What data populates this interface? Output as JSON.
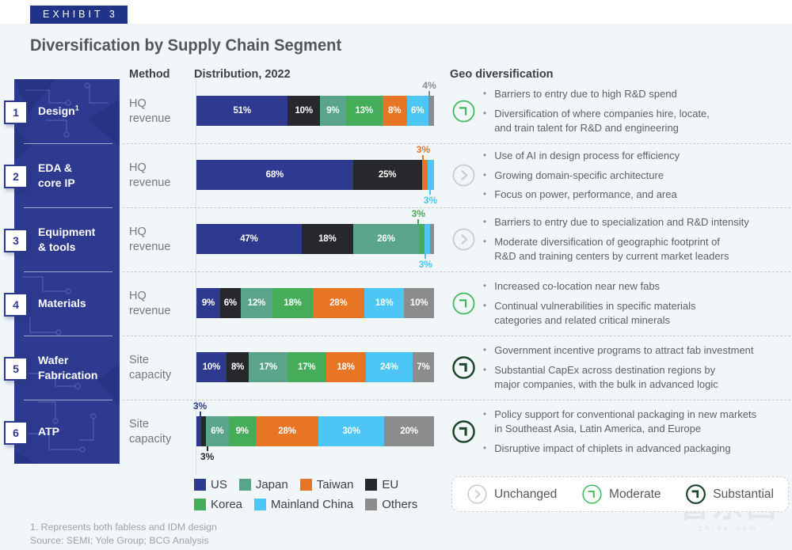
{
  "exhibit_label": "EXHIBIT 3",
  "title": "Diversification by Supply Chain Segment",
  "headers": {
    "method": "Method",
    "distribution": "Distribution, 2022",
    "geo": "Geo diversification"
  },
  "region_labels": {
    "us": "US",
    "japan": "Japan",
    "taiwan": "Taiwan",
    "eu": "EU",
    "korea": "Korea",
    "mainland_china": "Mainland China",
    "others": "Others"
  },
  "region_colors": {
    "us": "#2D3A8F",
    "eu": "#26282B",
    "japan": "#5AA58A",
    "korea": "#45AC5A",
    "taiwan": "#E87524",
    "mainland_china": "#4EC6F5",
    "others": "#8C8C8C"
  },
  "status_colors": {
    "unchanged": "#C8CCCE",
    "moderate": "#41B75F",
    "substantial": "#1C452A"
  },
  "rows": [
    {
      "number": "1",
      "segment": "Design",
      "segment_sup": "1",
      "method": "HQ\nrevenue",
      "geo_status": "moderate",
      "bar": [
        {
          "region": "us",
          "value": 51,
          "label": "51%",
          "label_pos": "inside"
        },
        {
          "region": "eu",
          "value": 10,
          "label": "10%",
          "label_pos": "inside"
        },
        {
          "region": "japan",
          "value": 9,
          "label": "9%",
          "label_pos": "inside"
        },
        {
          "region": "korea",
          "value": 13,
          "label": "13%",
          "label_pos": "inside"
        },
        {
          "region": "taiwan",
          "value": 8,
          "label": "8%",
          "label_pos": "inside"
        },
        {
          "region": "mainland_china",
          "value": 6,
          "label": "6%",
          "label_pos": "inside"
        },
        {
          "region": "others",
          "value": 4,
          "label": "4%",
          "label_pos": "above"
        }
      ],
      "bullets": [
        "Barriers to entry due to high R&D spend",
        "Diversification of where companies hire, locate,\nand train talent for R&D and engineering"
      ]
    },
    {
      "number": "2",
      "segment": "EDA &\ncore IP",
      "segment_sup": "",
      "method": "HQ\nrevenue",
      "geo_status": "unchanged",
      "bar": [
        {
          "region": "us",
          "value": 68,
          "label": "68%",
          "label_pos": "inside"
        },
        {
          "region": "eu",
          "value": 25,
          "label": "25%",
          "label_pos": "inside"
        },
        {
          "region": "taiwan",
          "value": 3,
          "label": "3%",
          "label_pos": "above"
        },
        {
          "region": "mainland_china",
          "value": 3,
          "label": "3%",
          "label_pos": "below"
        }
      ],
      "bullets": [
        "Use of AI in design process for efficiency",
        "Growing domain-specific architecture",
        "Focus on power, performance, and area"
      ]
    },
    {
      "number": "3",
      "segment": "Equipment\n& tools",
      "segment_sup": "",
      "method": "HQ\nrevenue",
      "geo_status": "unchanged",
      "bar": [
        {
          "region": "us",
          "value": 47,
          "label": "47%",
          "label_pos": "inside"
        },
        {
          "region": "eu",
          "value": 18,
          "label": "18%",
          "label_pos": "inside"
        },
        {
          "region": "japan",
          "value": 26,
          "label": "26%",
          "label_pos": "inside"
        },
        {
          "region": "korea",
          "value": 3,
          "label": "3%",
          "label_pos": "above"
        },
        {
          "region": "mainland_china",
          "value": 3,
          "label": "3%",
          "label_pos": "below"
        },
        {
          "region": "others",
          "value": 2,
          "label": "",
          "label_pos": "none"
        }
      ],
      "bullets": [
        "Barriers to entry due to specialization and R&D intensity",
        "Moderate diversification of geographic footprint of\nR&D and training centers by current market leaders"
      ]
    },
    {
      "number": "4",
      "segment": "Materials",
      "segment_sup": "",
      "method": "HQ\nrevenue",
      "geo_status": "moderate",
      "bar": [
        {
          "region": "us",
          "value": 9,
          "label": "9%",
          "label_pos": "inside"
        },
        {
          "region": "eu",
          "value": 6,
          "label": "6%",
          "label_pos": "inside"
        },
        {
          "region": "japan",
          "value": 12,
          "label": "12%",
          "label_pos": "inside"
        },
        {
          "region": "korea",
          "value": 18,
          "label": "18%",
          "label_pos": "inside"
        },
        {
          "region": "taiwan",
          "value": 28,
          "label": "28%",
          "label_pos": "inside"
        },
        {
          "region": "mainland_china",
          "value": 18,
          "label": "18%",
          "label_pos": "inside"
        },
        {
          "region": "others",
          "value": 10,
          "label": "10%",
          "label_pos": "inside"
        }
      ],
      "bullets": [
        "Increased co-location near new fabs",
        "Continual vulnerabilities in specific materials\ncategories and related critical minerals"
      ]
    },
    {
      "number": "5",
      "segment": "Wafer\nFabrication",
      "segment_sup": "",
      "method": "Site\ncapacity",
      "geo_status": "substantial",
      "bar": [
        {
          "region": "us",
          "value": 10,
          "label": "10%",
          "label_pos": "inside"
        },
        {
          "region": "eu",
          "value": 8,
          "label": "8%",
          "label_pos": "inside"
        },
        {
          "region": "japan",
          "value": 17,
          "label": "17%",
          "label_pos": "inside"
        },
        {
          "region": "korea",
          "value": 17,
          "label": "17%",
          "label_pos": "inside"
        },
        {
          "region": "taiwan",
          "value": 18,
          "label": "18%",
          "label_pos": "inside"
        },
        {
          "region": "mainland_china",
          "value": 24,
          "label": "24%",
          "label_pos": "inside"
        },
        {
          "region": "others",
          "value": 7,
          "label": "7%",
          "label_pos": "inside"
        }
      ],
      "bullets": [
        "Government incentive programs to attract fab investment",
        "Substantial CapEx across destination regions by\nmajor companies, with the bulk in advanced logic"
      ]
    },
    {
      "number": "6",
      "segment": "ATP",
      "segment_sup": "",
      "method": "Site\ncapacity",
      "geo_status": "substantial",
      "bar": [
        {
          "region": "us",
          "value": 3,
          "label": "3%",
          "label_pos": "above"
        },
        {
          "region": "eu",
          "value": 3,
          "label": "3%",
          "label_pos": "below"
        },
        {
          "region": "japan",
          "value": 6,
          "label": "6%",
          "label_pos": "inside"
        },
        {
          "region": "korea",
          "value": 9,
          "label": "9%",
          "label_pos": "inside"
        },
        {
          "region": "taiwan",
          "value": 28,
          "label": "28%",
          "label_pos": "inside"
        },
        {
          "region": "mainland_china",
          "value": 30,
          "label": "30%",
          "label_pos": "inside"
        },
        {
          "region": "others",
          "value": 20,
          "label": "20%",
          "label_pos": "inside"
        }
      ],
      "bullets": [
        "Policy support for conventional packaging in new markets\nin Southeast Asia, Latin America, and Europe",
        "Disruptive impact of chiplets in advanced packaging"
      ]
    }
  ],
  "region_legend_rows": [
    [
      "us",
      "japan",
      "taiwan",
      "eu"
    ],
    [
      "korea",
      "mainland_china",
      "others"
    ]
  ],
  "geo_legend": [
    {
      "status": "unchanged",
      "label": "Unchanged"
    },
    {
      "status": "moderate",
      "label": "Moderate"
    },
    {
      "status": "substantial",
      "label": "Substantial"
    }
  ],
  "footnotes": {
    "note": "1. Represents both fabless and IDM design",
    "source": "Source: SEMI; Yole Group; BCG Analysis"
  },
  "watermark": {
    "text": "智东西",
    "sub": "zhidx.com"
  },
  "chart_data": {
    "type": "bar",
    "stacked": true,
    "orientation": "horizontal",
    "unit": "%",
    "title": "Distribution, 2022",
    "categories": [
      "Design",
      "EDA & core IP",
      "Equipment & tools",
      "Materials",
      "Wafer Fabrication",
      "ATP"
    ],
    "category_methods": [
      "HQ revenue",
      "HQ revenue",
      "HQ revenue",
      "HQ revenue",
      "Site capacity",
      "Site capacity"
    ],
    "series": [
      {
        "name": "US",
        "values": [
          51,
          68,
          47,
          9,
          10,
          3
        ]
      },
      {
        "name": "EU",
        "values": [
          10,
          25,
          18,
          6,
          8,
          3
        ]
      },
      {
        "name": "Japan",
        "values": [
          9,
          0,
          26,
          12,
          17,
          6
        ]
      },
      {
        "name": "Korea",
        "values": [
          13,
          0,
          3,
          18,
          17,
          9
        ]
      },
      {
        "name": "Taiwan",
        "values": [
          8,
          3,
          0,
          28,
          18,
          28
        ]
      },
      {
        "name": "Mainland China",
        "values": [
          6,
          3,
          3,
          18,
          24,
          30
        ]
      },
      {
        "name": "Others",
        "values": [
          4,
          0,
          2,
          10,
          7,
          20
        ]
      }
    ],
    "geo_diversification_rating": [
      "Moderate",
      "Unchanged",
      "Unchanged",
      "Moderate",
      "Substantial",
      "Substantial"
    ],
    "legend_position": "bottom",
    "xlim": [
      0,
      100
    ]
  }
}
